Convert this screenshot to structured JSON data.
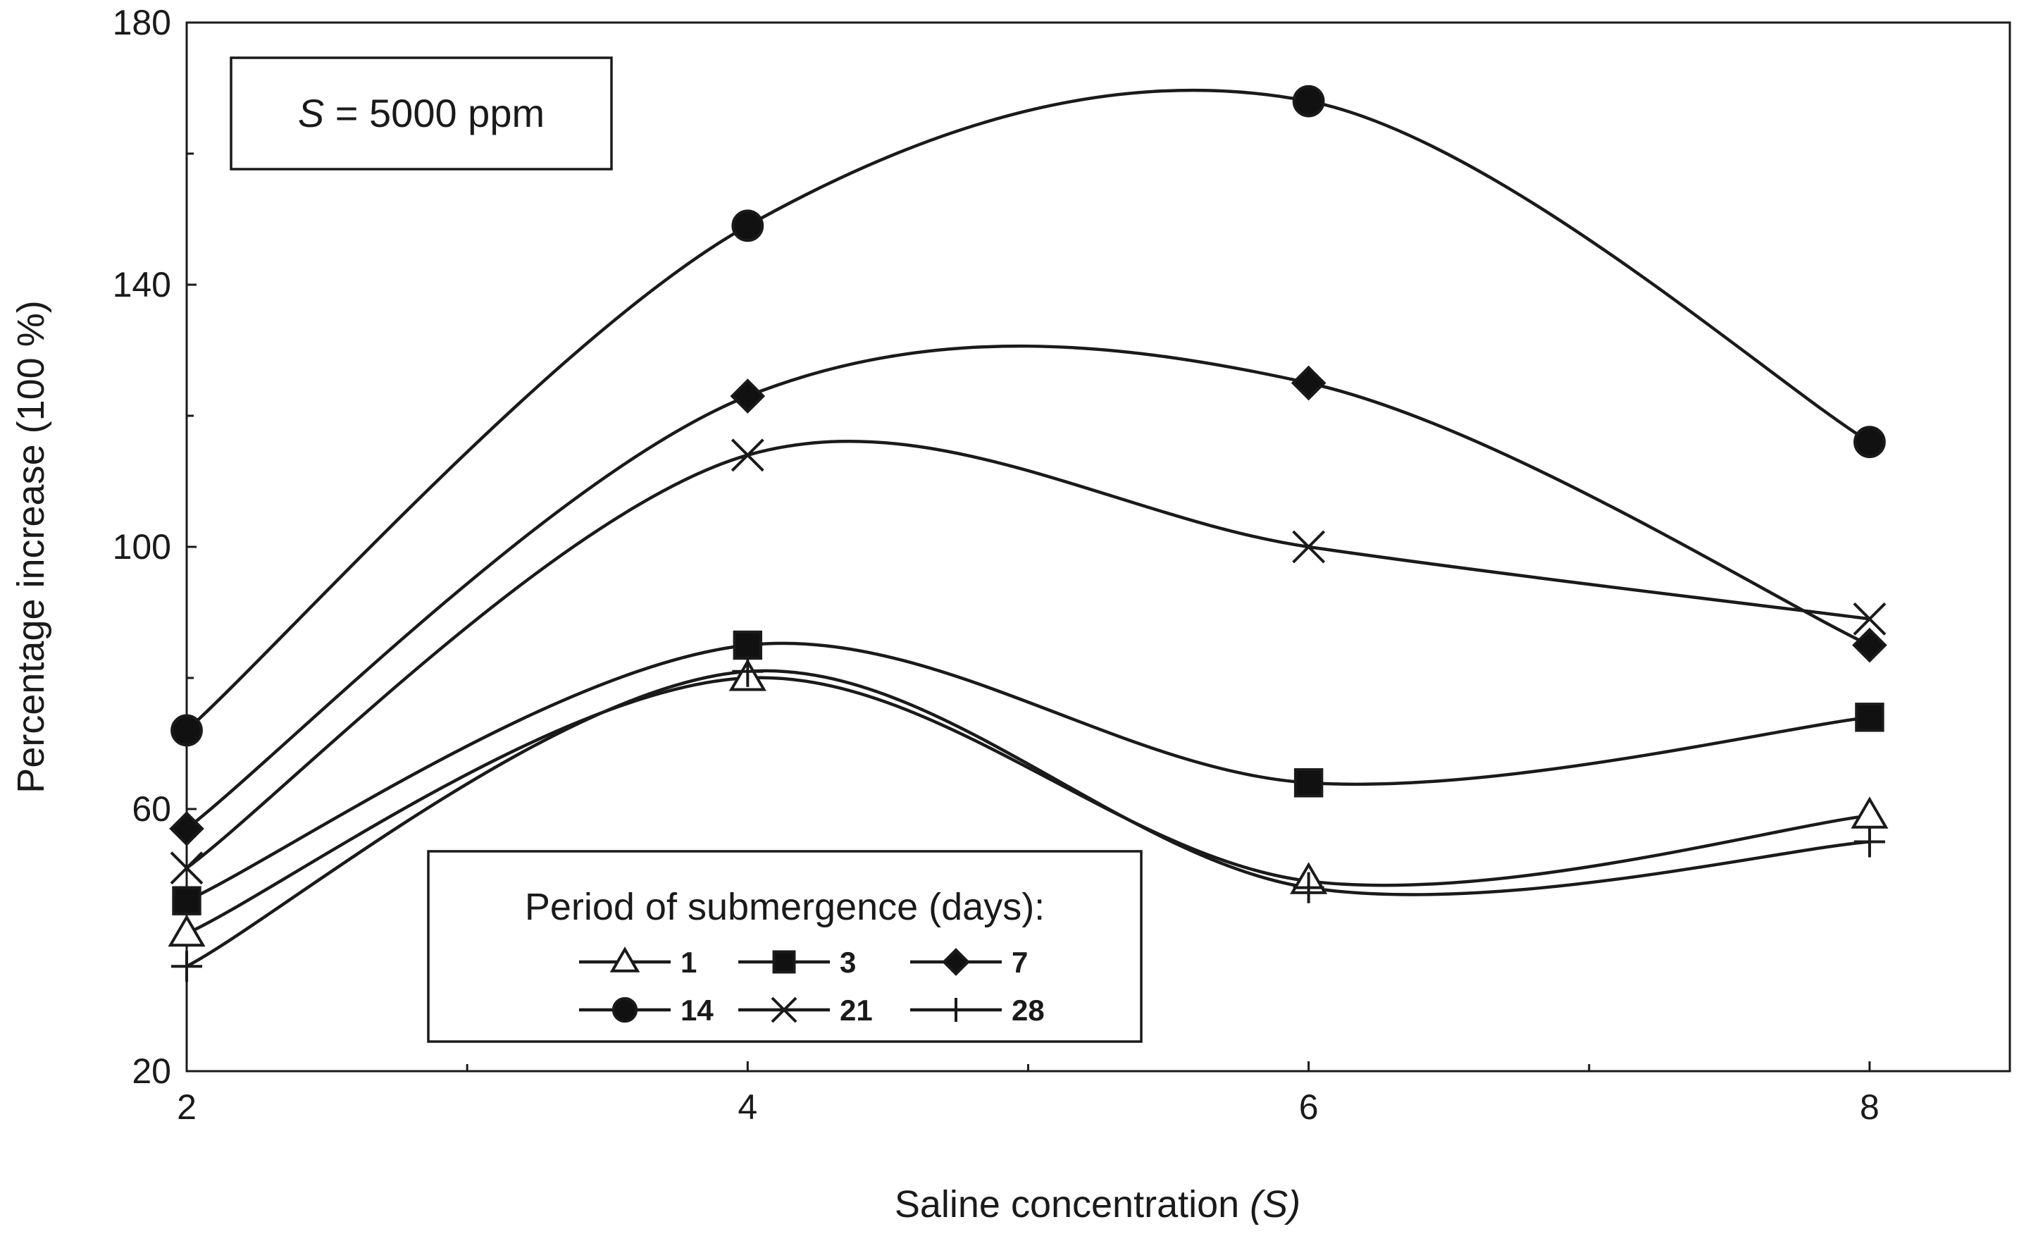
{
  "chart_data": {
    "type": "line",
    "title": "",
    "xlabel_prefix": "Saline concentration ",
    "xlabel_var": "(S)",
    "ylabel": "Percentage increase (100 %)",
    "x": [
      2,
      4,
      6,
      8
    ],
    "xlim": [
      2,
      8.5
    ],
    "ylim": [
      20,
      180
    ],
    "x_ticks": [
      "2",
      "4",
      "6",
      "8"
    ],
    "y_ticks": [
      "20",
      "60",
      "100",
      "140",
      "180"
    ],
    "annotation": {
      "var": "S",
      "text": " = 5000 ppm"
    },
    "legend_title": "Period of submergence (days):",
    "series": [
      {
        "name": "1",
        "marker": "triangle",
        "values": [
          41,
          80,
          49,
          59
        ]
      },
      {
        "name": "3",
        "marker": "square",
        "values": [
          46,
          85,
          64,
          74
        ]
      },
      {
        "name": "7",
        "marker": "diamond",
        "values": [
          57,
          123,
          125,
          85
        ]
      },
      {
        "name": "14",
        "marker": "circle",
        "values": [
          72,
          149,
          168,
          116
        ]
      },
      {
        "name": "21",
        "marker": "x",
        "values": [
          51,
          114,
          100,
          89
        ]
      },
      {
        "name": "28",
        "marker": "plus",
        "values": [
          36,
          81,
          48,
          55
        ]
      }
    ]
  }
}
